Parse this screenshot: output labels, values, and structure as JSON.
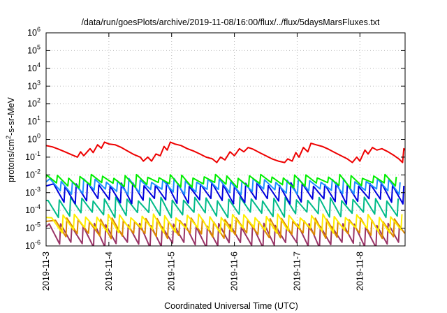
{
  "chart_data": {
    "type": "line",
    "title": "/data/run/goesPlots/archive/2019-11-08/16:00/flux/../flux/5daysMarsFluxes.txt",
    "xlabel": "Coordinated Universal Time (UTC)",
    "ylabel_parts": {
      "prefix": "protons/cm",
      "sup": "2",
      "suffix": "-s-sr-MeV"
    },
    "yscale": "log",
    "ylim_exp": [
      -6,
      6
    ],
    "xlim_days": [
      0,
      5.72
    ],
    "grid": true,
    "legend": "none",
    "x_ticks": [
      {
        "label": "2019-11-3",
        "day": 0
      },
      {
        "label": "2019-11-4",
        "day": 1
      },
      {
        "label": "2019-11-5",
        "day": 2
      },
      {
        "label": "2019-11-6",
        "day": 3
      },
      {
        "label": "2019-11-7",
        "day": 4
      },
      {
        "label": "2019-11-8",
        "day": 5
      }
    ],
    "y_ticks": [
      {
        "base": "10",
        "exp": "6"
      },
      {
        "base": "10",
        "exp": "5"
      },
      {
        "base": "10",
        "exp": "4"
      },
      {
        "base": "10",
        "exp": "3"
      },
      {
        "base": "10",
        "exp": "2"
      },
      {
        "base": "10",
        "exp": "1"
      },
      {
        "base": "10",
        "exp": "0"
      },
      {
        "base": "10",
        "exp": "-1"
      },
      {
        "base": "10",
        "exp": "-2"
      },
      {
        "base": "10",
        "exp": "-3"
      },
      {
        "base": "10",
        "exp": "-4"
      },
      {
        "base": "10",
        "exp": "-5"
      },
      {
        "base": "10",
        "exp": "-6"
      }
    ],
    "series": [
      {
        "color": "#ee0000",
        "points": [
          [
            0.0,
            0.45
          ],
          [
            0.1,
            0.38
          ],
          [
            0.2,
            0.28
          ],
          [
            0.3,
            0.2
          ],
          [
            0.4,
            0.14
          ],
          [
            0.5,
            0.1
          ],
          [
            0.55,
            0.2
          ],
          [
            0.6,
            0.12
          ],
          [
            0.7,
            0.3
          ],
          [
            0.75,
            0.18
          ],
          [
            0.82,
            0.5
          ],
          [
            0.88,
            0.32
          ],
          [
            0.93,
            0.7
          ],
          [
            1.0,
            0.55
          ],
          [
            1.1,
            0.5
          ],
          [
            1.2,
            0.35
          ],
          [
            1.3,
            0.22
          ],
          [
            1.4,
            0.14
          ],
          [
            1.5,
            0.1
          ],
          [
            1.55,
            0.06
          ],
          [
            1.62,
            0.1
          ],
          [
            1.68,
            0.06
          ],
          [
            1.75,
            0.15
          ],
          [
            1.82,
            0.12
          ],
          [
            1.88,
            0.4
          ],
          [
            1.93,
            0.25
          ],
          [
            1.98,
            0.7
          ],
          [
            2.05,
            0.55
          ],
          [
            2.15,
            0.45
          ],
          [
            2.25,
            0.3
          ],
          [
            2.35,
            0.22
          ],
          [
            2.45,
            0.15
          ],
          [
            2.55,
            0.1
          ],
          [
            2.65,
            0.08
          ],
          [
            2.72,
            0.05
          ],
          [
            2.78,
            0.1
          ],
          [
            2.85,
            0.07
          ],
          [
            2.93,
            0.2
          ],
          [
            3.0,
            0.12
          ],
          [
            3.08,
            0.3
          ],
          [
            3.15,
            0.2
          ],
          [
            3.22,
            0.35
          ],
          [
            3.3,
            0.28
          ],
          [
            3.4,
            0.18
          ],
          [
            3.5,
            0.12
          ],
          [
            3.6,
            0.08
          ],
          [
            3.7,
            0.06
          ],
          [
            3.8,
            0.05
          ],
          [
            3.85,
            0.08
          ],
          [
            3.92,
            0.06
          ],
          [
            3.98,
            0.18
          ],
          [
            4.03,
            0.1
          ],
          [
            4.1,
            0.35
          ],
          [
            4.17,
            0.2
          ],
          [
            4.22,
            0.6
          ],
          [
            4.3,
            0.5
          ],
          [
            4.4,
            0.4
          ],
          [
            4.5,
            0.28
          ],
          [
            4.6,
            0.18
          ],
          [
            4.7,
            0.12
          ],
          [
            4.8,
            0.08
          ],
          [
            4.88,
            0.05
          ],
          [
            4.95,
            0.1
          ],
          [
            5.0,
            0.06
          ],
          [
            5.08,
            0.25
          ],
          [
            5.13,
            0.15
          ],
          [
            5.2,
            0.35
          ],
          [
            5.27,
            0.25
          ],
          [
            5.35,
            0.3
          ],
          [
            5.45,
            0.2
          ],
          [
            5.55,
            0.12
          ],
          [
            5.62,
            0.08
          ],
          [
            5.68,
            0.05
          ],
          [
            5.7,
            0.3
          ],
          [
            5.72,
            0.25
          ]
        ]
      },
      {
        "color": "#00ee00",
        "lo": 0.0028,
        "hi": 0.0085,
        "phase": 0.0
      },
      {
        "color": "#1e90ff",
        "lo": 0.0012,
        "hi": 0.005,
        "phase": 0.06
      },
      {
        "color": "#0000dd",
        "lo": 0.00035,
        "hi": 0.003,
        "phase": 0.12
      },
      {
        "color": "#00bb88",
        "lo": 6e-05,
        "hi": 0.00045,
        "phase": 0.03
      },
      {
        "color": "#ffee00",
        "lo": 8e-06,
        "hi": 5e-05,
        "phase": 0.09
      },
      {
        "color": "#dd8800",
        "lo": 4e-06,
        "hi": 3e-05,
        "phase": 0.15
      },
      {
        "color": "#993366",
        "lo": 1.2e-06,
        "hi": 1.5e-05,
        "phase": 0.05
      }
    ]
  }
}
